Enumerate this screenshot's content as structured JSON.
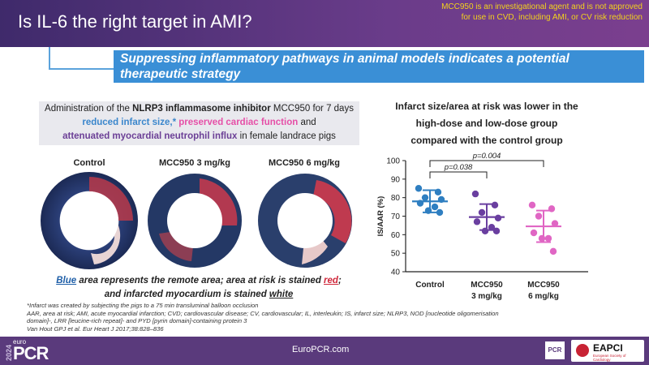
{
  "header": {
    "title": "Is IL-6 the right target in AMI?",
    "disclaimer": "MCC950 is an investigational agent and is not approved for use in CVD, including AMI, or CV risk reduction",
    "banner": "Suppressing inflammatory pathways in animal models indicates a potential therapeutic strategy"
  },
  "summary": {
    "p1": "Administration of the ",
    "p2": "NLRP3 inflammasome inhibitor",
    "p3": " MCC950 for 7 days",
    "p4": "reduced infarct size,*",
    "p5": " preserved cardiac function",
    "p6": " and",
    "p7": "attenuated myocardial neutrophil influx",
    "p8": " in female landrace pigs"
  },
  "images": {
    "labels": [
      "Control",
      "MCC950 3 mg/kg",
      "MCC950 6 mg/kg"
    ]
  },
  "caption": {
    "c1": "Blue",
    "c2": " area represents the remote area; area at risk is stained ",
    "c3": "red",
    "c4": ";",
    "c5": "and infarcted myocardium is stained ",
    "c6": "white"
  },
  "footnotes": [
    "*Infarct was created by subjecting the pigs to a 75 min transluminal balloon occlusion",
    "AAR, area at risk; AMI, acute myocardial infarction; CVD; cardiovascular disease; CV, cardiovascular; IL, interleukin; IS, infarct size; NLRP3, NOD [nucleotide oligomerisation domain]-, LRR [leucine-rich repeat]- and PYD [pyrin domain]-containing protein 3",
    "Van Hout GPJ et al. Eur Heart J 2017;38:828–836"
  ],
  "chart_title": [
    "Infarct size/area at risk was lower in the",
    "high-dose and low-dose group",
    "compared with the control group"
  ],
  "chart_data": {
    "type": "scatter",
    "ylabel": "IS/AAR (%)",
    "ylim": [
      40,
      100
    ],
    "yticks": [
      40,
      50,
      60,
      70,
      80,
      90,
      100
    ],
    "categories": [
      "Control",
      "MCC950\n3 mg/kg",
      "MCC950\n6 mg/kg"
    ],
    "colors": [
      "#2f7fc1",
      "#6a3fa0",
      "#e066c4"
    ],
    "series": [
      {
        "values": [
          85,
          83,
          80,
          79,
          77,
          75,
          73,
          72
        ],
        "mean": 78,
        "sd": 6
      },
      {
        "values": [
          82,
          76,
          72,
          69,
          67,
          64,
          62,
          62
        ],
        "mean": 69.5,
        "sd": 7
      },
      {
        "values": [
          76,
          74,
          70,
          66,
          61,
          58,
          58,
          51
        ],
        "mean": 64.5,
        "sd": 8.5
      }
    ],
    "annotations": [
      {
        "from": 0,
        "to": 1,
        "text": "p=0.038"
      },
      {
        "from": 0,
        "to": 2,
        "text": "p=0.004"
      }
    ]
  },
  "footer": {
    "url": "EuroPCR.com",
    "year": "2024",
    "euro": "euro",
    "pcr": "PCR",
    "pcr_box": "PCR",
    "eapci": "EAPCI",
    "eapci_sub": "European Society of Cardiology"
  }
}
